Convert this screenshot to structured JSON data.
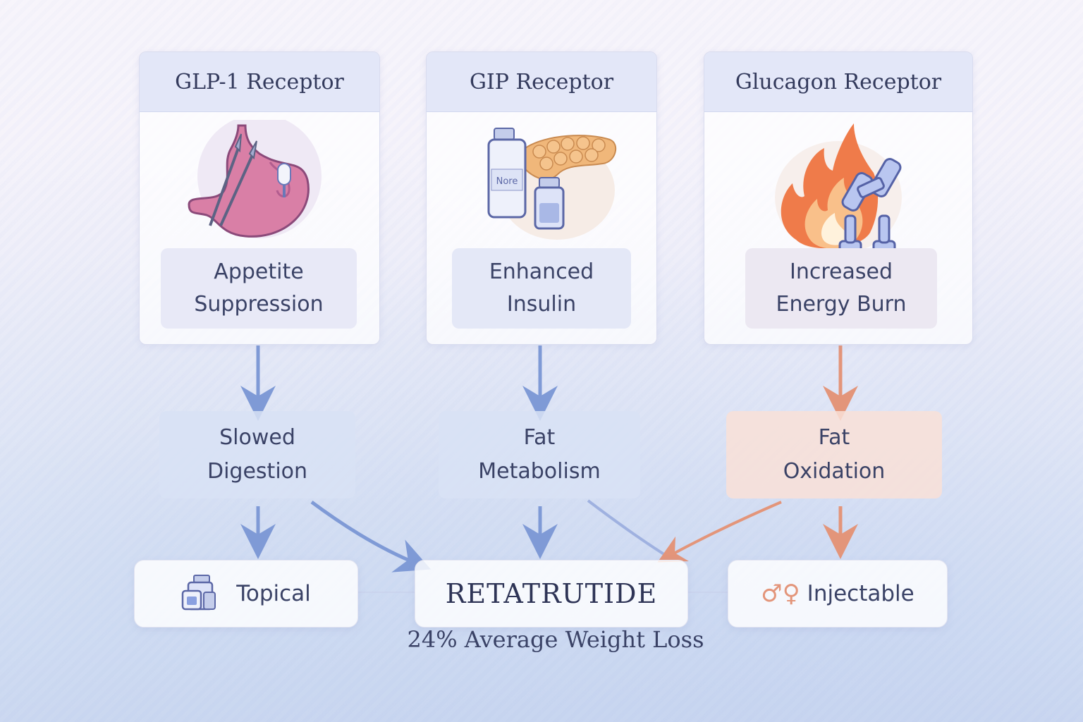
{
  "receptors": [
    {
      "title": "GLP-1 Receptor",
      "effect": "Appetite\nSuppression",
      "outcome": "Slowed\nDigestion",
      "icon": "stomach-icon"
    },
    {
      "title": "GIP Receptor",
      "effect": "Enhanced\nInsulin",
      "outcome": "Fat\nMetabolism",
      "icon": "pancreas-vials-icon",
      "vial_label": "Nore"
    },
    {
      "title": "Glucagon Receptor",
      "effect": "Increased\nEnergy Burn",
      "outcome": "Fat\nOxidation",
      "icon": "flame-dumbbell-icon"
    }
  ],
  "forms": {
    "left": {
      "label": "Topical",
      "icon": "vials-icon"
    },
    "center": {
      "label": "RETATRUTIDE"
    },
    "right": {
      "label": "Injectable",
      "icon": "gender-symbols-icon",
      "symbols": "♂♀"
    }
  },
  "caption": "24% Average Weight Loss",
  "colors": {
    "blue_arrow": "#7f9ad6",
    "orange_arrow": "#e3957a",
    "header_bg": "#e3e7f8",
    "blue_box": "#dfe5f7",
    "orange_box": "#f9e2da"
  }
}
